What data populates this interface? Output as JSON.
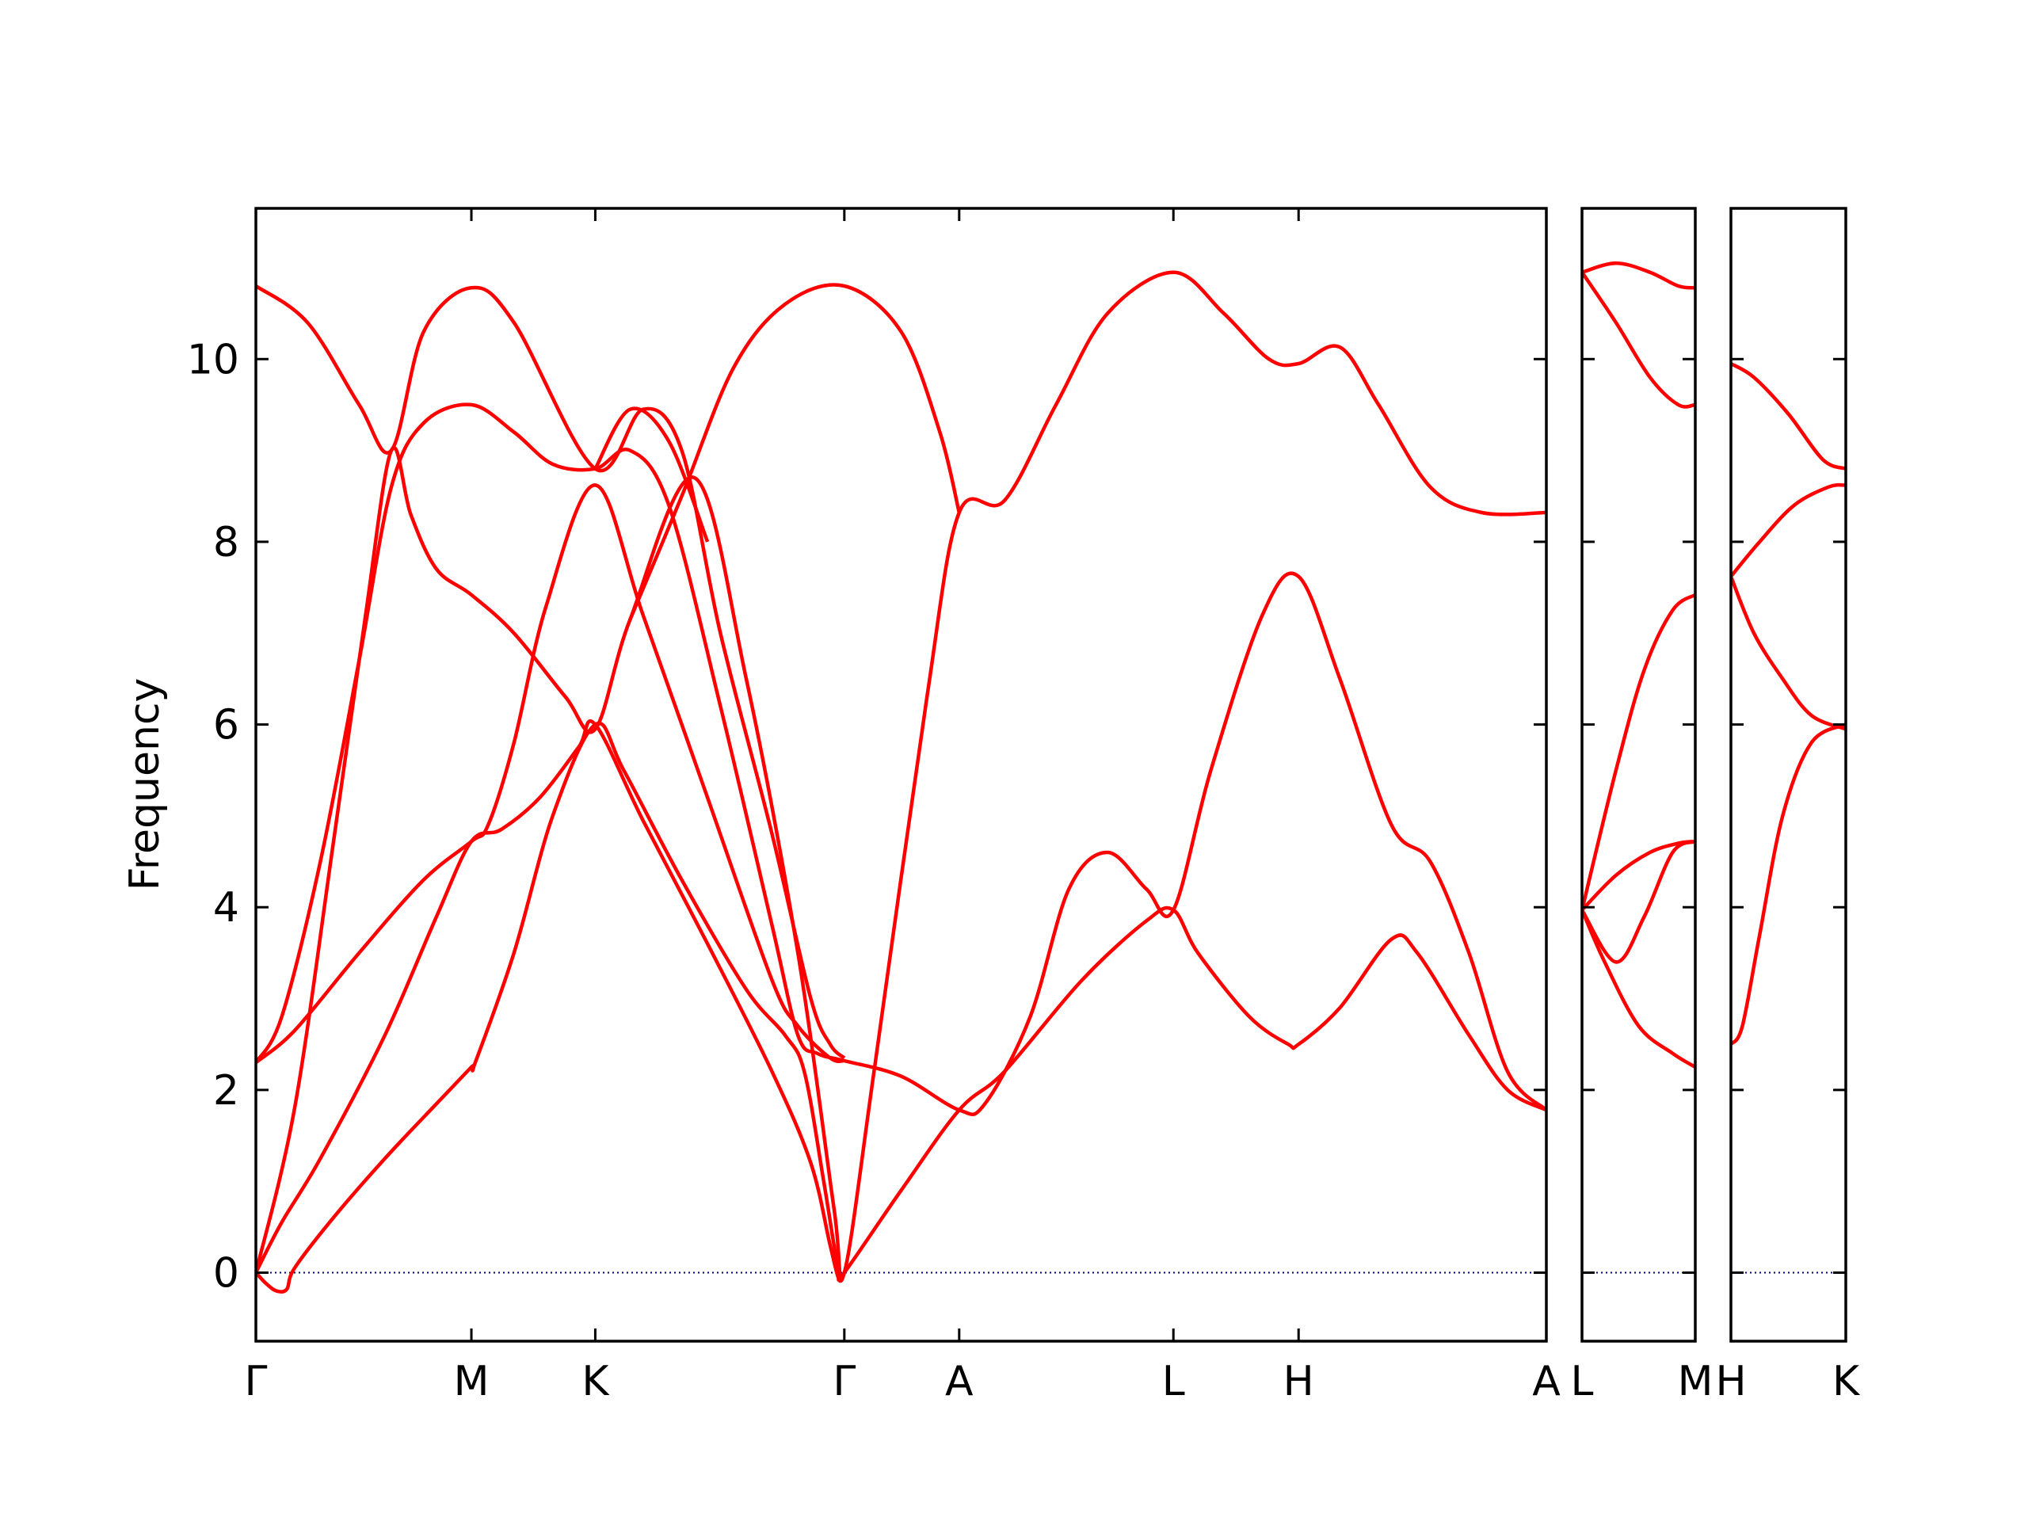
{
  "chart_data": {
    "type": "line",
    "title": "",
    "ylabel": "Frequency",
    "xlabel": "",
    "ylim": [
      -0.75,
      11.65
    ],
    "yticks": [
      0,
      2,
      4,
      6,
      8,
      10
    ],
    "zero_line_color": "#00008b",
    "band_color": "#ff0000",
    "grid": false,
    "legend": "none",
    "panels": [
      {
        "labels": [
          "Γ",
          "M",
          "K",
          "Γ",
          "A",
          "L",
          "H",
          "A"
        ],
        "x": [
          0,
          0.167,
          0.263,
          0.456,
          0.545,
          0.711,
          0.808,
          1.0
        ],
        "bands": [
          [
            [
              0,
              0
            ],
            [
              0.008,
              -0.12
            ],
            [
              0.016,
              -0.2
            ],
            [
              0.024,
              -0.18
            ],
            [
              0.03,
              0.05
            ],
            [
              0.06,
              0.6
            ],
            [
              0.1,
              1.25
            ],
            [
              0.14,
              1.85
            ],
            [
              0.167,
              2.25
            ],
            [
              0.17,
              2.3
            ],
            [
              0.2,
              3.5
            ],
            [
              0.23,
              5.0
            ],
            [
              0.263,
              6.0
            ],
            [
              0.285,
              5.5
            ],
            [
              0.33,
              4.3
            ],
            [
              0.38,
              3.1
            ],
            [
              0.41,
              2.6
            ],
            [
              0.425,
              2.2
            ],
            [
              0.44,
              1.0
            ],
            [
              0.448,
              0.3
            ],
            [
              0.452,
              0.0
            ],
            [
              0.456,
              0.0
            ],
            [
              0.5,
              0.9
            ],
            [
              0.545,
              1.78
            ],
            [
              0.58,
              2.2
            ],
            [
              0.64,
              3.2
            ],
            [
              0.69,
              3.85
            ],
            [
              0.711,
              3.97
            ],
            [
              0.73,
              3.5
            ],
            [
              0.77,
              2.8
            ],
            [
              0.8,
              2.5
            ],
            [
              0.808,
              2.5
            ],
            [
              0.84,
              2.9
            ],
            [
              0.88,
              3.65
            ],
            [
              0.9,
              3.5
            ],
            [
              0.94,
              2.6
            ],
            [
              0.97,
              2.0
            ],
            [
              1.0,
              1.78
            ]
          ],
          [
            [
              0,
              0
            ],
            [
              0.02,
              0.55
            ],
            [
              0.05,
              1.25
            ],
            [
              0.1,
              2.6
            ],
            [
              0.14,
              3.9
            ],
            [
              0.167,
              4.72
            ],
            [
              0.19,
              4.85
            ],
            [
              0.22,
              5.2
            ],
            [
              0.25,
              5.75
            ],
            [
              0.263,
              6.0
            ],
            [
              0.3,
              4.95
            ],
            [
              0.35,
              3.6
            ],
            [
              0.4,
              2.2
            ],
            [
              0.43,
              1.2
            ],
            [
              0.445,
              0.3
            ],
            [
              0.452,
              -0.08
            ],
            [
              0.456,
              0.0
            ]
          ],
          [
            [
              0,
              2.3
            ],
            [
              0.03,
              2.65
            ],
            [
              0.08,
              3.5
            ],
            [
              0.13,
              4.3
            ],
            [
              0.167,
              4.72
            ],
            [
              0.18,
              4.9
            ],
            [
              0.2,
              5.8
            ],
            [
              0.225,
              7.3
            ],
            [
              0.263,
              8.62
            ],
            [
              0.3,
              7.2
            ],
            [
              0.35,
              5.2
            ],
            [
              0.4,
              3.2
            ],
            [
              0.42,
              2.7
            ],
            [
              0.445,
              2.35
            ],
            [
              0.456,
              2.32
            ]
          ],
          [
            [
              0,
              2.3
            ],
            [
              0.02,
              2.8
            ],
            [
              0.05,
              4.5
            ],
            [
              0.08,
              6.7
            ],
            [
              0.105,
              8.6
            ],
            [
              0.13,
              9.3
            ],
            [
              0.167,
              9.5
            ],
            [
              0.2,
              9.2
            ],
            [
              0.23,
              8.85
            ],
            [
              0.263,
              8.8
            ],
            [
              0.29,
              9.0
            ],
            [
              0.32,
              8.4
            ],
            [
              0.36,
              6.2
            ],
            [
              0.4,
              3.8
            ],
            [
              0.42,
              2.6
            ],
            [
              0.435,
              2.4
            ],
            [
              0.456,
              2.32
            ],
            [
              0.5,
              2.15
            ],
            [
              0.545,
              1.78
            ],
            [
              0.565,
              1.85
            ],
            [
              0.6,
              2.8
            ],
            [
              0.63,
              4.2
            ],
            [
              0.66,
              4.6
            ],
            [
              0.69,
              4.2
            ],
            [
              0.711,
              3.97
            ],
            [
              0.74,
              5.5
            ],
            [
              0.78,
              7.2
            ],
            [
              0.808,
              7.62
            ],
            [
              0.84,
              6.5
            ],
            [
              0.88,
              4.9
            ],
            [
              0.91,
              4.5
            ],
            [
              0.94,
              3.5
            ],
            [
              0.97,
              2.2
            ],
            [
              1.0,
              1.78
            ]
          ],
          [
            [
              0,
              0
            ],
            [
              0.03,
              1.8
            ],
            [
              0.06,
              4.7
            ],
            [
              0.085,
              7.2
            ],
            [
              0.105,
              9.0
            ],
            [
              0.12,
              8.3
            ],
            [
              0.14,
              7.7
            ],
            [
              0.167,
              7.42
            ],
            [
              0.2,
              7.0
            ],
            [
              0.24,
              6.3
            ],
            [
              0.263,
              5.95
            ],
            [
              0.29,
              7.15
            ],
            [
              0.34,
              8.7
            ],
            [
              0.38,
              6.5
            ],
            [
              0.42,
              3.5
            ],
            [
              0.448,
              0.7
            ],
            [
              0.456,
              0.0
            ],
            [
              0.48,
              2.3
            ],
            [
              0.52,
              6.3
            ],
            [
              0.545,
              8.32
            ],
            [
              0.58,
              8.45
            ],
            [
              0.62,
              9.5
            ],
            [
              0.66,
              10.5
            ],
            [
              0.711,
              10.95
            ],
            [
              0.75,
              10.5
            ],
            [
              0.785,
              10.0
            ],
            [
              0.808,
              9.95
            ],
            [
              0.84,
              10.13
            ],
            [
              0.87,
              9.5
            ],
            [
              0.91,
              8.6
            ],
            [
              0.95,
              8.32
            ],
            [
              1.0,
              8.32
            ]
          ],
          [
            [
              0,
              10.8
            ],
            [
              0.04,
              10.4
            ],
            [
              0.08,
              9.5
            ],
            [
              0.105,
              9.0
            ],
            [
              0.13,
              10.3
            ],
            [
              0.167,
              10.78
            ],
            [
              0.2,
              10.4
            ],
            [
              0.263,
              8.8
            ],
            [
              0.3,
              9.45
            ],
            [
              0.33,
              9.0
            ],
            [
              0.36,
              7.0
            ],
            [
              0.4,
              4.8
            ],
            [
              0.43,
              3.0
            ],
            [
              0.445,
              2.5
            ],
            [
              0.456,
              2.35
            ]
          ],
          [
            [
              0.263,
              8.8
            ],
            [
              0.29,
              9.45
            ],
            [
              0.32,
              9.1
            ],
            [
              0.35,
              8.0
            ]
          ],
          [
            [
              0.29,
              7.15
            ],
            [
              0.33,
              8.5
            ],
            [
              0.37,
              9.9
            ],
            [
              0.41,
              10.6
            ],
            [
              0.456,
              10.8
            ],
            [
              0.5,
              10.3
            ],
            [
              0.53,
              9.2
            ],
            [
              0.545,
              8.32
            ]
          ]
        ]
      },
      {
        "labels": [
          "L",
          "M"
        ],
        "x": [
          0,
          1.0
        ],
        "bands": [
          [
            [
              0,
              3.97
            ],
            [
              0.2,
              3.4
            ],
            [
              0.5,
              2.7
            ],
            [
              0.8,
              2.4
            ],
            [
              1.0,
              2.25
            ]
          ],
          [
            [
              0,
              3.97
            ],
            [
              0.3,
              3.4
            ],
            [
              0.55,
              3.9
            ],
            [
              0.8,
              4.6
            ],
            [
              1.0,
              4.72
            ]
          ],
          [
            [
              0,
              3.97
            ],
            [
              0.3,
              4.35
            ],
            [
              0.6,
              4.6
            ],
            [
              0.85,
              4.7
            ],
            [
              1.0,
              4.72
            ]
          ],
          [
            [
              0,
              3.97
            ],
            [
              0.3,
              5.5
            ],
            [
              0.55,
              6.6
            ],
            [
              0.8,
              7.25
            ],
            [
              1.0,
              7.42
            ]
          ],
          [
            [
              0,
              10.95
            ],
            [
              0.3,
              10.4
            ],
            [
              0.6,
              9.8
            ],
            [
              0.85,
              9.5
            ],
            [
              1.0,
              9.5
            ]
          ],
          [
            [
              0,
              10.95
            ],
            [
              0.3,
              11.05
            ],
            [
              0.6,
              10.95
            ],
            [
              0.85,
              10.8
            ],
            [
              1.0,
              10.78
            ]
          ]
        ]
      },
      {
        "labels": [
          "H",
          "K"
        ],
        "x": [
          0,
          1.0
        ],
        "bands": [
          [
            [
              0,
              2.5
            ],
            [
              0.1,
              2.7
            ],
            [
              0.25,
              3.7
            ],
            [
              0.45,
              5.0
            ],
            [
              0.7,
              5.8
            ],
            [
              1.0,
              6.0
            ]
          ],
          [
            [
              0,
              7.62
            ],
            [
              0.2,
              7.0
            ],
            [
              0.45,
              6.5
            ],
            [
              0.7,
              6.1
            ],
            [
              1.0,
              5.95
            ]
          ],
          [
            [
              0,
              7.62
            ],
            [
              0.25,
              8.0
            ],
            [
              0.55,
              8.4
            ],
            [
              0.85,
              8.6
            ],
            [
              1.0,
              8.62
            ]
          ],
          [
            [
              0,
              9.95
            ],
            [
              0.2,
              9.8
            ],
            [
              0.5,
              9.4
            ],
            [
              0.8,
              8.9
            ],
            [
              1.0,
              8.8
            ]
          ]
        ]
      }
    ]
  }
}
